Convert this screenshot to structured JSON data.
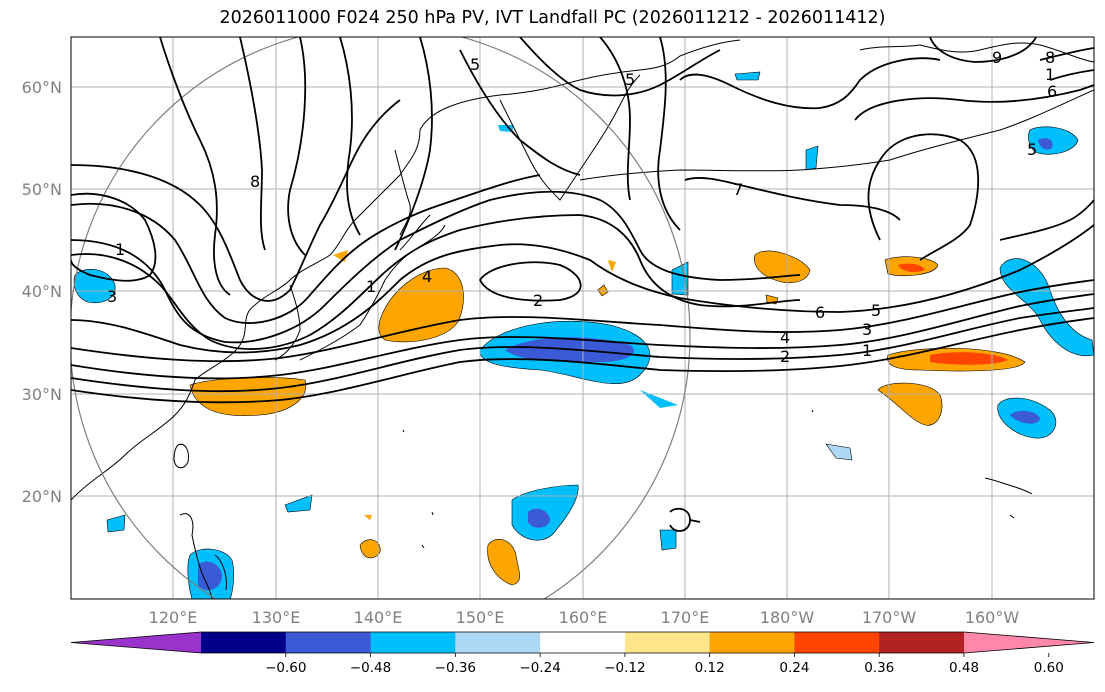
{
  "title": "2026011000 F024 250 hPa PV, IVT Landfall PC (2026011212 - 2026011412)",
  "map": {
    "lat_labels": [
      "60°N",
      "50°N",
      "40°N",
      "30°N",
      "20°N"
    ],
    "lon_labels": [
      "120°E",
      "130°E",
      "140°E",
      "150°E",
      "160°E",
      "170°E",
      "180°W",
      "170°W",
      "160°W"
    ],
    "contour_labels": [
      "5",
      "5",
      "9",
      "8",
      "1",
      "6",
      "5",
      "8",
      "1",
      "3",
      "1",
      "4",
      "2",
      "7",
      "6",
      "5",
      "4",
      "3",
      "2",
      "1"
    ]
  },
  "colorbar": {
    "colors": [
      "#9933cc",
      "#00008b",
      "#3b5bd6",
      "#00bfff",
      "#add8f5",
      "#ffffff",
      "#ffe68a",
      "#ffa500",
      "#ff4500",
      "#b22222",
      "#ff88aa"
    ],
    "tick_labels": [
      "−0.60",
      "−0.48",
      "−0.36",
      "−0.24",
      "−0.12",
      "0.12",
      "0.24",
      "0.36",
      "0.48",
      "0.60"
    ]
  }
}
